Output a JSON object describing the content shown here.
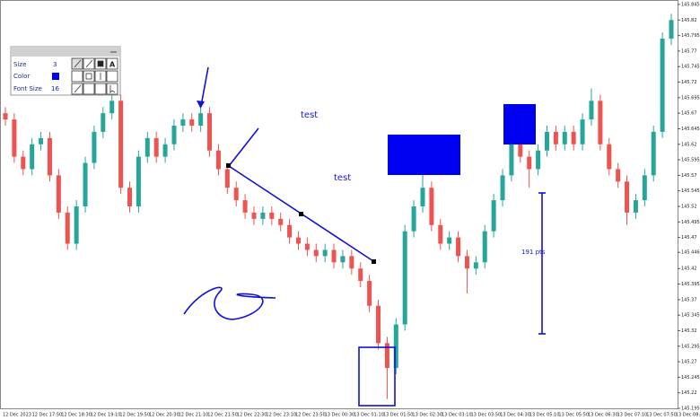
{
  "chart_data": {
    "type": "candlestick",
    "candles": [
      [
        145.67,
        145.68,
        145.65,
        145.66
      ],
      [
        145.66,
        145.67,
        145.59,
        145.6
      ],
      [
        145.6,
        145.61,
        145.57,
        145.58
      ],
      [
        145.58,
        145.63,
        145.57,
        145.62
      ],
      [
        145.62,
        145.64,
        145.61,
        145.63
      ],
      [
        145.63,
        145.64,
        145.56,
        145.57
      ],
      [
        145.57,
        145.58,
        145.5,
        145.51
      ],
      [
        145.51,
        145.52,
        145.45,
        145.46
      ],
      [
        145.46,
        145.53,
        145.45,
        145.52
      ],
      [
        145.52,
        145.6,
        145.51,
        145.59
      ],
      [
        145.59,
        145.65,
        145.58,
        145.64
      ],
      [
        145.64,
        145.68,
        145.63,
        145.67
      ],
      [
        145.67,
        145.7,
        145.66,
        145.69
      ],
      [
        145.69,
        145.7,
        145.54,
        145.55
      ],
      [
        145.55,
        145.56,
        145.51,
        145.52
      ],
      [
        145.52,
        145.61,
        145.51,
        145.6
      ],
      [
        145.6,
        145.64,
        145.59,
        145.63
      ],
      [
        145.63,
        145.64,
        145.59,
        145.6
      ],
      [
        145.6,
        145.63,
        145.59,
        145.62
      ],
      [
        145.62,
        145.66,
        145.61,
        145.65
      ],
      [
        145.65,
        145.67,
        145.64,
        145.66
      ],
      [
        145.66,
        145.67,
        145.64,
        145.65
      ],
      [
        145.65,
        145.68,
        145.64,
        145.67
      ],
      [
        145.67,
        145.68,
        145.6,
        145.61
      ],
      [
        145.61,
        145.62,
        145.57,
        145.58
      ],
      [
        145.58,
        145.59,
        145.54,
        145.55
      ],
      [
        145.55,
        145.56,
        145.52,
        145.53
      ],
      [
        145.53,
        145.54,
        145.5,
        145.51
      ],
      [
        145.51,
        145.52,
        145.49,
        145.5
      ],
      [
        145.5,
        145.52,
        145.49,
        145.51
      ],
      [
        145.51,
        145.52,
        145.49,
        145.5
      ],
      [
        145.5,
        145.51,
        145.48,
        145.49
      ],
      [
        145.49,
        145.5,
        145.46,
        145.47
      ],
      [
        145.47,
        145.48,
        145.45,
        145.46
      ],
      [
        145.46,
        145.47,
        145.44,
        145.45
      ],
      [
        145.45,
        145.46,
        145.43,
        145.44
      ],
      [
        145.44,
        145.46,
        145.43,
        145.45
      ],
      [
        145.45,
        145.46,
        145.42,
        145.43
      ],
      [
        145.43,
        145.45,
        145.42,
        145.44
      ],
      [
        145.44,
        145.45,
        145.41,
        145.42
      ],
      [
        145.42,
        145.43,
        145.39,
        145.4
      ],
      [
        145.4,
        145.41,
        145.35,
        145.36
      ],
      [
        145.36,
        145.37,
        145.29,
        145.3
      ],
      [
        145.3,
        145.31,
        145.21,
        145.26
      ],
      [
        145.26,
        145.34,
        145.25,
        145.33
      ],
      [
        145.33,
        145.49,
        145.32,
        145.48
      ],
      [
        145.48,
        145.53,
        145.47,
        145.52
      ],
      [
        145.52,
        145.59,
        145.51,
        145.55
      ],
      [
        145.55,
        145.56,
        145.48,
        145.49
      ],
      [
        145.49,
        145.5,
        145.45,
        145.46
      ],
      [
        145.46,
        145.48,
        145.45,
        145.47
      ],
      [
        145.47,
        145.48,
        145.43,
        145.44
      ],
      [
        145.44,
        145.45,
        145.38,
        145.42
      ],
      [
        145.42,
        145.44,
        145.41,
        145.43
      ],
      [
        145.43,
        145.49,
        145.42,
        145.48
      ],
      [
        145.48,
        145.54,
        145.47,
        145.53
      ],
      [
        145.53,
        145.58,
        145.52,
        145.57
      ],
      [
        145.57,
        145.67,
        145.56,
        145.64
      ],
      [
        145.64,
        145.65,
        145.59,
        145.6
      ],
      [
        145.6,
        145.61,
        145.55,
        145.58
      ],
      [
        145.58,
        145.62,
        145.57,
        145.61
      ],
      [
        145.61,
        145.65,
        145.6,
        145.64
      ],
      [
        145.64,
        145.65,
        145.61,
        145.62
      ],
      [
        145.62,
        145.65,
        145.61,
        145.64
      ],
      [
        145.64,
        145.65,
        145.61,
        145.62
      ],
      [
        145.62,
        145.67,
        145.61,
        145.66
      ],
      [
        145.66,
        145.71,
        145.65,
        145.69
      ],
      [
        145.69,
        145.7,
        145.61,
        145.62
      ],
      [
        145.62,
        145.63,
        145.57,
        145.58
      ],
      [
        145.58,
        145.59,
        145.55,
        145.56
      ],
      [
        145.56,
        145.57,
        145.49,
        145.51
      ],
      [
        145.51,
        145.54,
        145.5,
        145.53
      ],
      [
        145.53,
        145.58,
        145.52,
        145.57
      ],
      [
        145.57,
        145.65,
        145.56,
        145.64
      ],
      [
        145.64,
        145.8,
        145.63,
        145.79
      ],
      [
        145.79,
        145.83,
        145.78,
        145.82
      ]
    ],
    "up_color": "#26a69a",
    "down_color": "#ef5350",
    "ylim": [
      145.195,
      145.845
    ],
    "yticks": [
      145.845,
      145.82,
      145.795,
      145.77,
      145.745,
      145.72,
      145.695,
      145.67,
      145.645,
      145.62,
      145.595,
      145.57,
      145.545,
      145.52,
      145.495,
      145.47,
      145.446,
      145.42,
      145.395,
      145.37,
      145.345,
      145.32,
      145.295,
      145.27,
      145.245,
      145.22,
      145.195
    ],
    "x_tick_labels": [
      "12 Dec 2023",
      "12 Dec 17:50",
      "12 Dec 18:30",
      "12 Dec 19:10",
      "12 Dec 19:50",
      "12 Dec 20:30",
      "12 Dec 21:10",
      "12 Dec 21:50",
      "12 Dec 22:30",
      "12 Dec 23:10",
      "12 Dec 23:50",
      "13 Dec 00:30",
      "13 Dec 01:10",
      "13 Dec 01:50",
      "13 Dec 02:30",
      "13 Dec 03:10",
      "13 Dec 03:50",
      "13 Dec 04:30",
      "13 Dec 05:10",
      "13 Dec 05:50",
      "13 Dec 06:30",
      "13 Dec 07:10",
      "13 Dec 07:50",
      "13 Dec 08:30"
    ],
    "annotations": [
      "test",
      "test",
      "191 pts"
    ]
  },
  "tool_panel": {
    "size_label": "Size",
    "size_value": "3",
    "color_label": "Color",
    "font_size_label": "Font Size",
    "font_size_value": "16"
  }
}
